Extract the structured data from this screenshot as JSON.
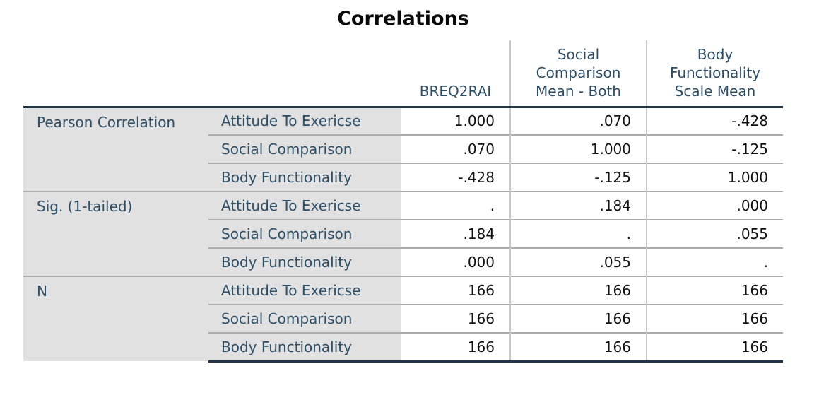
{
  "title": "Correlations",
  "colors": {
    "header_text": "#2e4e66",
    "label_background": "#e1e1e1",
    "value_text": "#111111",
    "heavy_border": "#203548",
    "light_border": "#ababab",
    "vertical_divider": "#c9c9c9"
  },
  "table": {
    "column_headers": [
      "BREQ2RAI",
      "Social\nComparison\nMean - Both",
      "Body\nFunctionality\nScale Mean"
    ],
    "groups": [
      {
        "label": "Pearson Correlation",
        "rows": [
          {
            "label": "Attitude To Exericse",
            "values": [
              "1.000",
              ".070",
              "-.428"
            ]
          },
          {
            "label": "Social Comparison",
            "values": [
              ".070",
              "1.000",
              "-.125"
            ]
          },
          {
            "label": "Body Functionality",
            "values": [
              "-.428",
              "-.125",
              "1.000"
            ]
          }
        ]
      },
      {
        "label": "Sig. (1-tailed)",
        "rows": [
          {
            "label": "Attitude To Exericse",
            "values": [
              ".",
              ".184",
              ".000"
            ]
          },
          {
            "label": "Social Comparison",
            "values": [
              ".184",
              ".",
              ".055"
            ]
          },
          {
            "label": "Body Functionality",
            "values": [
              ".000",
              ".055",
              "."
            ]
          }
        ]
      },
      {
        "label": "N",
        "rows": [
          {
            "label": "Attitude To Exericse",
            "values": [
              "166",
              "166",
              "166"
            ]
          },
          {
            "label": "Social Comparison",
            "values": [
              "166",
              "166",
              "166"
            ]
          },
          {
            "label": "Body Functionality",
            "values": [
              "166",
              "166",
              "166"
            ]
          }
        ]
      }
    ]
  }
}
